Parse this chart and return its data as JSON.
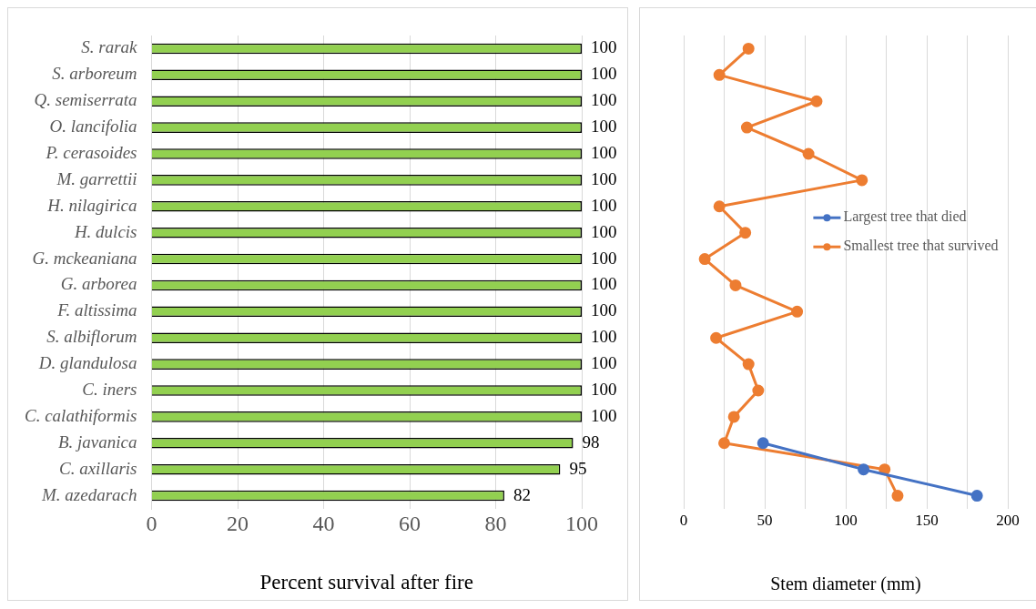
{
  "chart_data": [
    {
      "type": "bar",
      "orientation": "horizontal",
      "categories": [
        "S. rarak",
        "S. arboreum",
        "Q. semiserrata",
        "O. lancifolia",
        "P. cerasoides",
        "M. garrettii",
        "H. nilagirica",
        "H. dulcis",
        "G. mckeaniana",
        "G. arborea",
        "F. altissima",
        "S. albiflorum",
        "D. glandulosa",
        "C. iners",
        "C. calathiformis",
        "B. javanica",
        "C. axillaris",
        "M. azedarach"
      ],
      "values": [
        100,
        100,
        100,
        100,
        100,
        100,
        100,
        100,
        100,
        100,
        100,
        100,
        100,
        100,
        100,
        98,
        95,
        82
      ],
      "color": "#92d050",
      "xlim": [
        0,
        100
      ],
      "xticks": [
        0,
        20,
        40,
        60,
        80,
        100
      ],
      "xlabel": "Percent survival after fire",
      "grid": "x",
      "data_labels": true
    },
    {
      "type": "line",
      "orientation": "horizontal",
      "categories": [
        null,
        null,
        null,
        null,
        null,
        null,
        null,
        null,
        null,
        null,
        null,
        null,
        null,
        null,
        null,
        null,
        null,
        null
      ],
      "series": [
        {
          "name": "Largest tree that died",
          "color": "#4472c4",
          "values": [
            null,
            null,
            null,
            null,
            null,
            null,
            null,
            null,
            null,
            null,
            null,
            null,
            null,
            null,
            null,
            49,
            111,
            181
          ]
        },
        {
          "name": "Smallest tree that survived",
          "color": "#ed7d31",
          "values": [
            40,
            22,
            82,
            39,
            77,
            110,
            22,
            38,
            13,
            32,
            70,
            20,
            40,
            46,
            31,
            25,
            124,
            132
          ]
        }
      ],
      "xlim": [
        0,
        200
      ],
      "xticks": [
        0,
        {
          "value": 25,
          "label": null
        },
        50,
        {
          "value": 75,
          "label": null
        },
        100,
        {
          "value": 125,
          "label": null
        },
        150,
        {
          "value": 175,
          "label": null
        },
        200
      ],
      "xlabel": "Stem diameter (mm)",
      "grid": "x",
      "legend": "right",
      "marker": "circle",
      "line_style": "solid",
      "tick_labels": "x"
    }
  ]
}
